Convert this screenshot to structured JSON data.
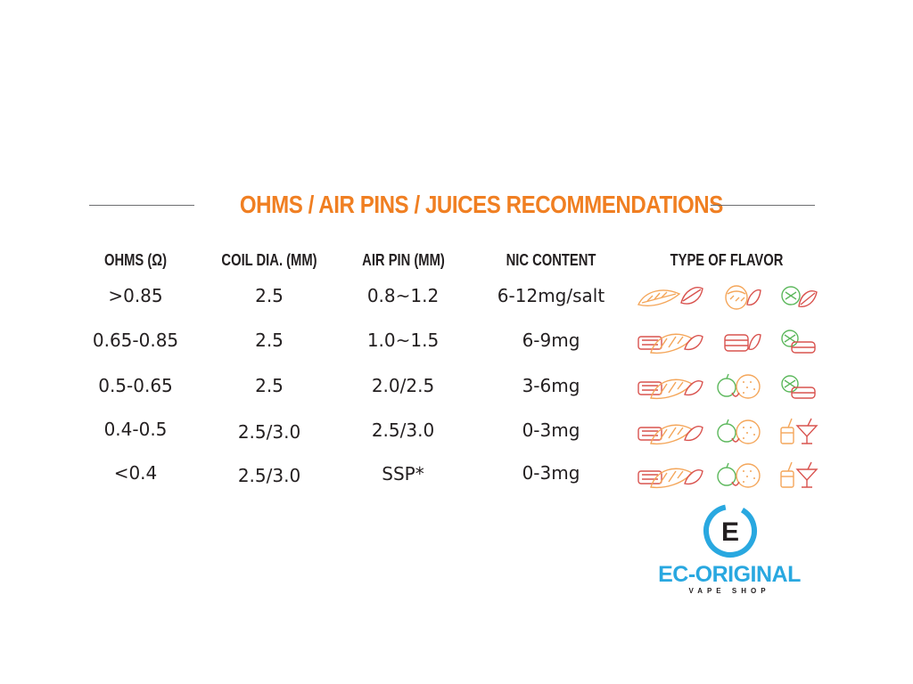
{
  "title": "OHMS / AIR PINS / JUICES RECOMMENDATIONS",
  "columns": [
    "OHMS (Ω)",
    "COIL DIA. (MM)",
    "AIR PIN (MM)",
    "NIC CONTENT",
    "TYPE OF FLAVOR"
  ],
  "rows": [
    {
      "ohms": ">0.85",
      "coil": "2.5",
      "air_pin": "0.8~1.2",
      "nic": "6-12mg/salt",
      "flavors": [
        "tobacco-icon",
        "nut-icon",
        "mint-icon"
      ]
    },
    {
      "ohms": "0.65-0.85",
      "coil": "2.5",
      "air_pin": "1.0~1.5",
      "nic": "6-9mg",
      "flavors": [
        "dessert-icon",
        "cake-icon",
        "mint-icon"
      ]
    },
    {
      "ohms": "0.5-0.65",
      "coil": "2.5",
      "air_pin": "2.0/2.5",
      "nic": "3-6mg",
      "flavors": [
        "dessert-icon",
        "fruit-icon",
        "mint-icon"
      ]
    },
    {
      "ohms": "0.4-0.5",
      "coil": "2.5/3.0",
      "air_pin": "2.5/3.0",
      "nic": "0-3mg",
      "flavors": [
        "dessert-icon",
        "fruit-icon",
        "drink-icon"
      ]
    },
    {
      "ohms": "<0.4",
      "coil": "2.5/3.0",
      "air_pin": "SSP*",
      "nic": "0-3mg",
      "flavors": [
        "dessert-icon",
        "fruit-icon",
        "drink-icon"
      ]
    }
  ],
  "logo": {
    "name": "EC-ORIGINAL",
    "tagline": "VAPE SHOP",
    "letter": "E"
  },
  "colors": {
    "title": "#f07f22",
    "text": "#231f20",
    "brand": "#29a8e0",
    "icon_orange": "#f4a65a",
    "icon_red": "#d9534f",
    "icon_green": "#5cb85c"
  }
}
